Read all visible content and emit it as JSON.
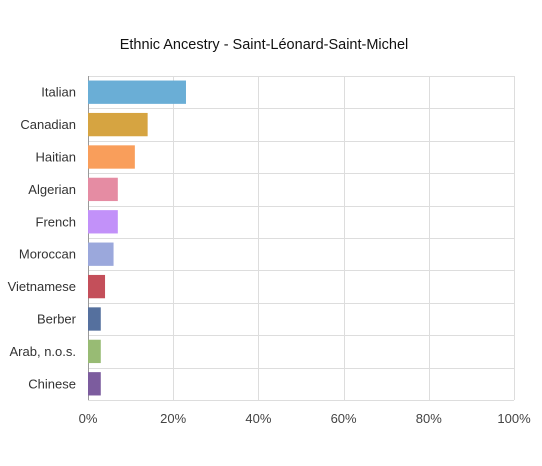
{
  "chart_data": {
    "type": "bar",
    "orientation": "horizontal",
    "title": "Ethnic Ancestry - Saint-Léonard-Saint-Michel",
    "xlabel": "",
    "ylabel": "",
    "xlim": [
      0,
      100
    ],
    "x_ticks": [
      "0%",
      "20%",
      "40%",
      "60%",
      "80%",
      "100%"
    ],
    "grid": true,
    "legend": "none",
    "categories": [
      "Italian",
      "Canadian",
      "Haitian",
      "Algerian",
      "French",
      "Moroccan",
      "Vietnamese",
      "Berber",
      "Arab, n.o.s.",
      "Chinese"
    ],
    "values": [
      23,
      14,
      11,
      7,
      7,
      6,
      4,
      3,
      3,
      3
    ],
    "colors": [
      "#6aaed6",
      "#d6a441",
      "#f99e5b",
      "#e58ca3",
      "#c291f9",
      "#9ba8dc",
      "#c44f5a",
      "#55709e",
      "#98bb74",
      "#7c5c9e"
    ]
  }
}
